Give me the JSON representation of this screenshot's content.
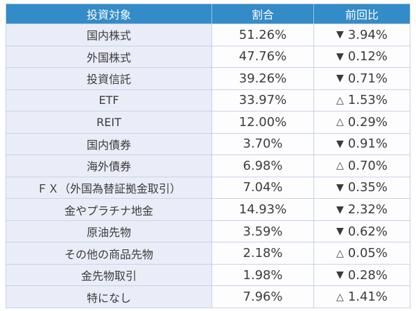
{
  "chart_data": {
    "type": "table",
    "columns": {
      "target": "投資対象",
      "ratio": "割合",
      "change": "前回比"
    },
    "rows": [
      {
        "target": "国内株式",
        "ratio": "51.26%",
        "change_symbol": "▼",
        "change_value": "3.94%"
      },
      {
        "target": "外国株式",
        "ratio": "47.76%",
        "change_symbol": "▼",
        "change_value": "0.12%"
      },
      {
        "target": "投資信託",
        "ratio": "39.26%",
        "change_symbol": "▼",
        "change_value": "0.71%"
      },
      {
        "target": "ETF",
        "ratio": "33.97%",
        "change_symbol": "△",
        "change_value": "1.53%"
      },
      {
        "target": "REIT",
        "ratio": "12.00%",
        "change_symbol": "△",
        "change_value": "0.29%"
      },
      {
        "target": "国内債券",
        "ratio": "3.70%",
        "change_symbol": "▼",
        "change_value": "0.91%"
      },
      {
        "target": "海外債券",
        "ratio": "6.98%",
        "change_symbol": "△",
        "change_value": "0.70%"
      },
      {
        "target": "ＦＸ（外国為替証拠金取引）",
        "ratio": "7.04%",
        "change_symbol": "▼",
        "change_value": "0.35%"
      },
      {
        "target": "金やプラチナ地金",
        "ratio": "14.93%",
        "change_symbol": "▼",
        "change_value": "2.32%"
      },
      {
        "target": "原油先物",
        "ratio": "3.59%",
        "change_symbol": "▼",
        "change_value": "0.62%"
      },
      {
        "target": "その他の商品先物",
        "ratio": "2.18%",
        "change_symbol": "△",
        "change_value": "0.05%"
      },
      {
        "target": "金先物取引",
        "ratio": "1.98%",
        "change_symbol": "▼",
        "change_value": "0.28%"
      },
      {
        "target": "特になし",
        "ratio": "7.96%",
        "change_symbol": "△",
        "change_value": "1.41%"
      }
    ]
  },
  "colors": {
    "header_bg": "#338bc8",
    "header_text": "#ffffff",
    "label_col_bg": "#eaedf8",
    "value_col_bg": "#fdfdfe",
    "border": "#c7d1e5",
    "text": "#3b3b3b"
  }
}
